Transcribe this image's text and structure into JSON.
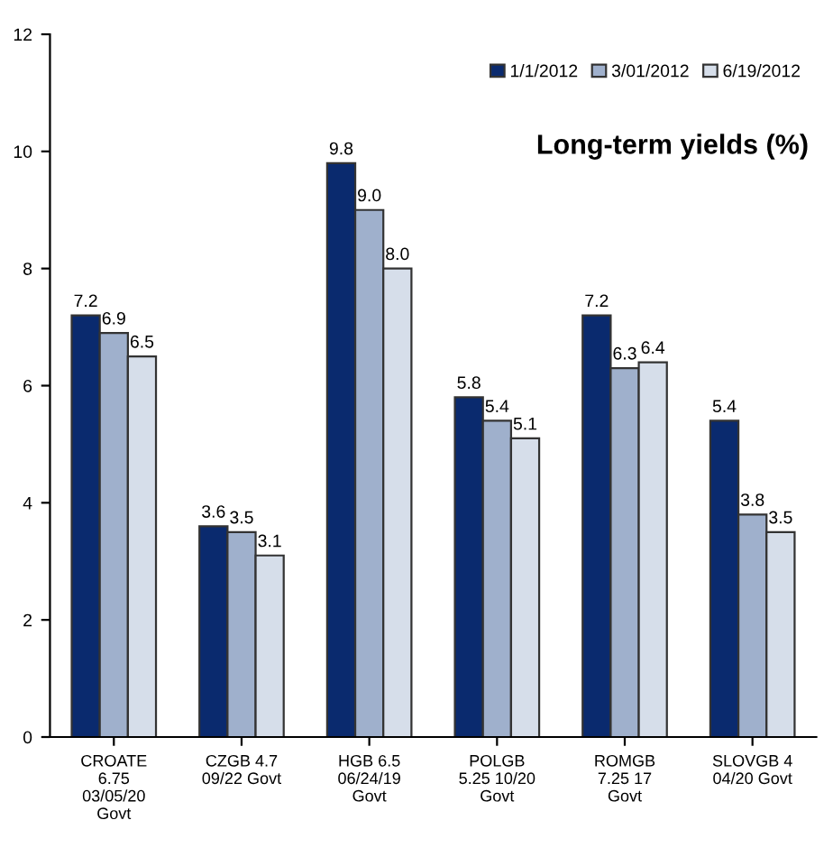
{
  "chart_data": {
    "type": "bar",
    "title": "Long-term yields (%)",
    "categories": [
      "CROATE\n6.75\n03/05/20\nGovt",
      "CZGB 4.7\n09/22 Govt",
      "HGB 6.5\n06/24/19\nGovt",
      "POLGB\n5.25 10/20\nGovt",
      "ROMGB\n7.25 17\nGovt",
      "SLOVGB 4\n04/20 Govt"
    ],
    "series": [
      {
        "name": "1/1/2012",
        "color": "#0a2a6e",
        "values": [
          7.2,
          3.6,
          9.8,
          5.8,
          7.2,
          5.4
        ],
        "value_labels": [
          "7.2",
          "3.6",
          "9.8",
          "5.8",
          "7.2",
          "5.4"
        ]
      },
      {
        "name": "3/01/2012",
        "color": "#9fb0cc",
        "values": [
          6.9,
          3.5,
          9.0,
          5.4,
          6.3,
          3.8
        ],
        "value_labels": [
          "6.9",
          "3.5",
          "9.0",
          "5.4",
          "6.3",
          "3.8"
        ]
      },
      {
        "name": "6/19/2012",
        "color": "#d6deea",
        "values": [
          6.5,
          3.1,
          8.0,
          5.1,
          6.4,
          3.5
        ],
        "value_labels": [
          "6.5",
          "3.1",
          "8.0",
          "5.1",
          "6.4",
          "3.5"
        ]
      }
    ],
    "ylim": [
      0,
      12
    ],
    "yticks": [
      0,
      2,
      4,
      6,
      8,
      10,
      12
    ],
    "grid": false,
    "legend": "top right"
  }
}
